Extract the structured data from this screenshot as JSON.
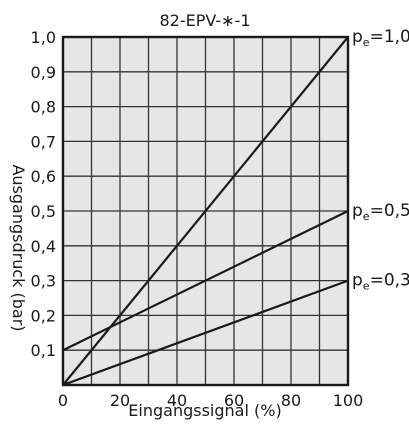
{
  "chart_data": {
    "type": "line",
    "title": "82-EPV-∗-1",
    "xlabel": "Eingangssignal (%)",
    "ylabel": "Ausgangsdruck (bar)",
    "xlim": [
      0,
      100
    ],
    "ylim": [
      0,
      1.0
    ],
    "x_ticks": [
      0,
      20,
      40,
      60,
      80,
      100
    ],
    "x_tick_labels": [
      "0",
      "20",
      "40",
      "60",
      "80",
      "100"
    ],
    "y_ticks": [
      0.1,
      0.2,
      0.3,
      0.4,
      0.5,
      0.6,
      0.7,
      0.8,
      0.9,
      1.0
    ],
    "y_tick_labels": [
      "0,1",
      "0,2",
      "0,3",
      "0,4",
      "0,5",
      "0,6",
      "0,7",
      "0,8",
      "0,9",
      "1,0"
    ],
    "grid": true,
    "grid_step_x": 10,
    "grid_step_y": 0.1,
    "line_color": "#1a1a1a",
    "plot_background": "#e6e6e6",
    "series": [
      {
        "label_main": "p",
        "label_sub": "e",
        "label_value": "=1,0",
        "x": [
          0,
          100
        ],
        "y": [
          0.0,
          1.0
        ]
      },
      {
        "label_main": "p",
        "label_sub": "e",
        "label_value": "=0,5",
        "x": [
          0,
          100
        ],
        "y": [
          0.1,
          0.5
        ]
      },
      {
        "label_main": "p",
        "label_sub": "e",
        "label_value": "=0,3",
        "x": [
          0,
          100
        ],
        "y": [
          0.0,
          0.3
        ]
      }
    ]
  }
}
